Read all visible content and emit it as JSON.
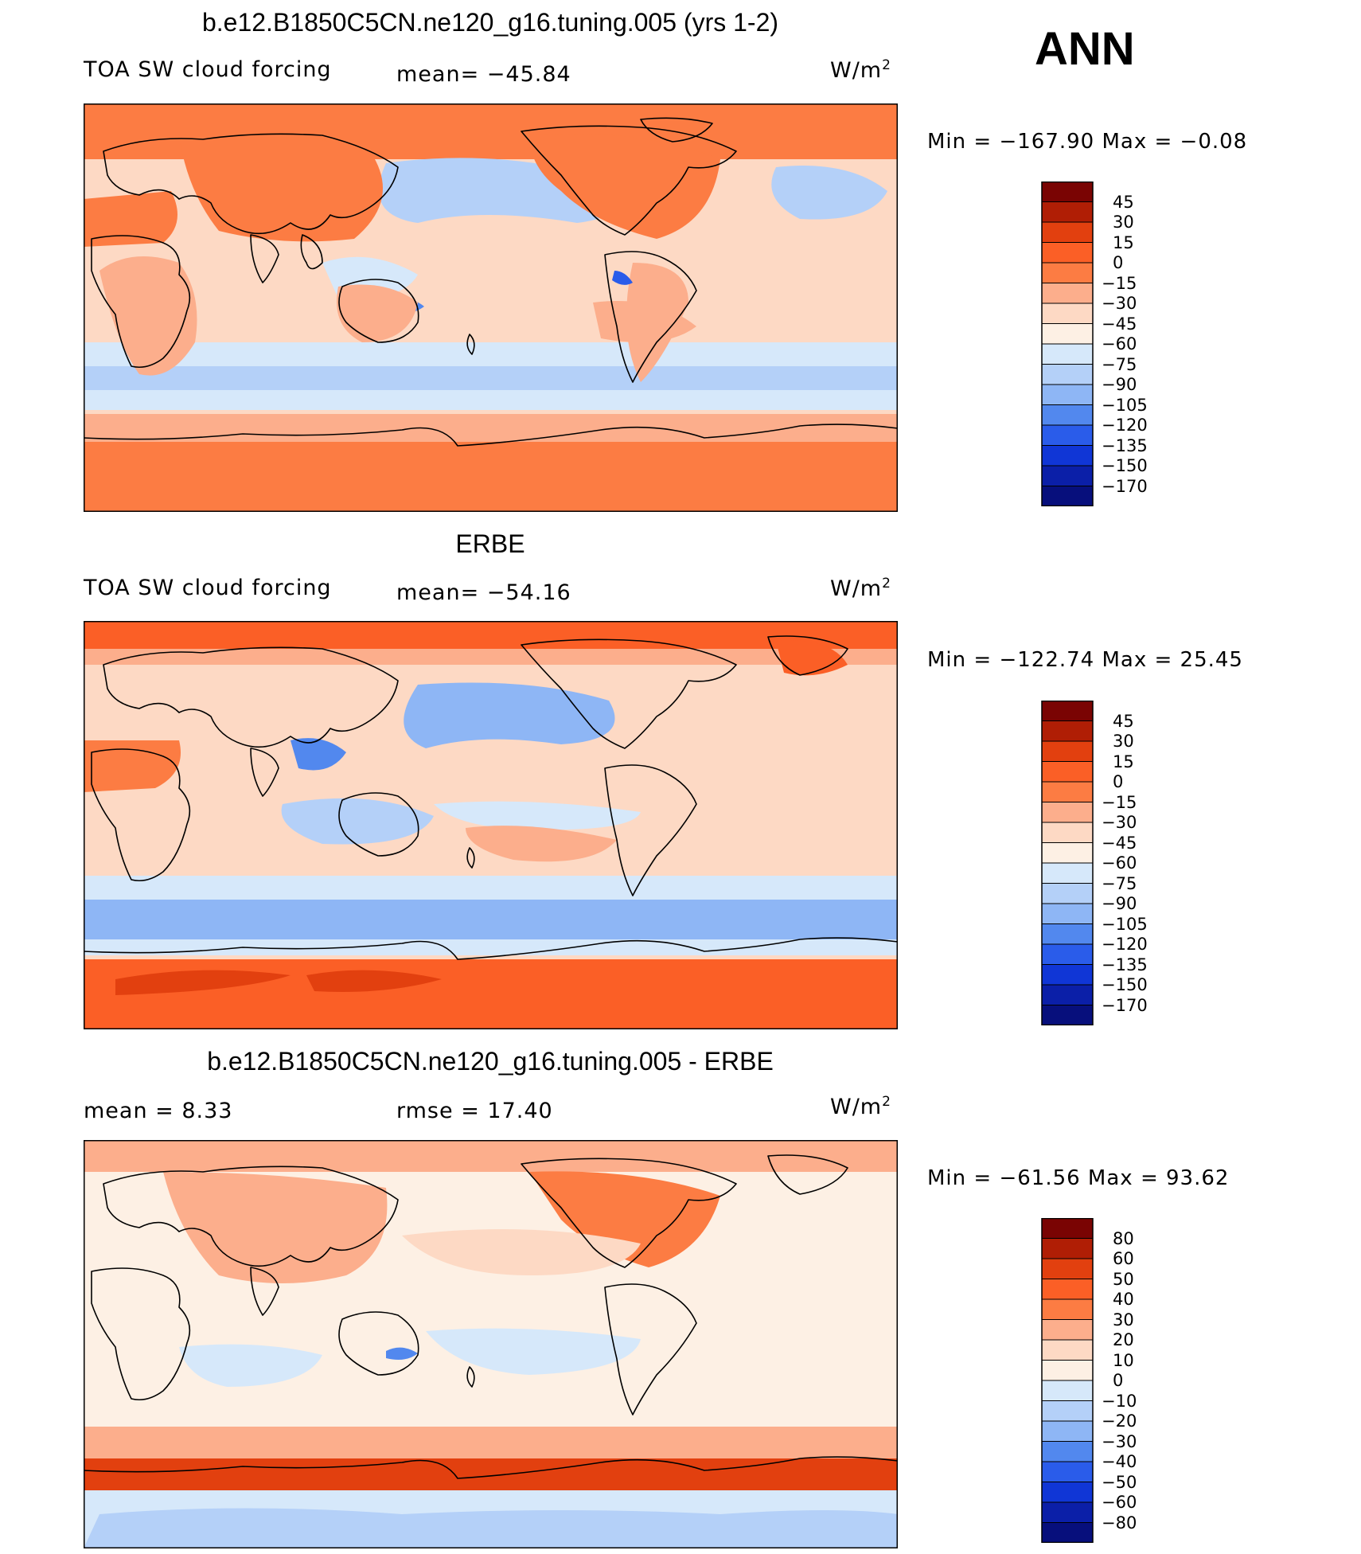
{
  "season": "ANN",
  "panels": [
    {
      "title": "b.e12.B1850C5CN.ne120_g16.tuning.005 (yrs 1-2)",
      "left_label": "TOA SW cloud forcing",
      "center_label": "mean=  −45.84",
      "units_base": "W/m",
      "units_exp": "2",
      "min_max": "Min  =  −167.90  Max  =   −0.08",
      "field_mean": -45.84,
      "field_min": -167.9,
      "field_max": -0.08,
      "colorbar": {
        "colors": [
          "#7a0403",
          "#b01e05",
          "#e2400f",
          "#fb5f26",
          "#fc7c43",
          "#fcae8c",
          "#fdd9c4",
          "#fdf0e4",
          "#d6e8fa",
          "#b4d0f8",
          "#8eb6f5",
          "#5288ee",
          "#2a5cea",
          "#1036d6",
          "#0b1fa8",
          "#070f7c"
        ],
        "labels": [
          "45",
          "30",
          "15",
          "0",
          "−15",
          "−30",
          "−45",
          "−60",
          "−75",
          "−90",
          "−105",
          "−120",
          "−135",
          "−150",
          "−170"
        ]
      }
    },
    {
      "title": "ERBE",
      "left_label": "TOA SW cloud forcing",
      "center_label": "mean=  −54.16",
      "units_base": "W/m",
      "units_exp": "2",
      "min_max": "Min  =  −122.74  Max  =   25.45",
      "field_mean": -54.16,
      "field_min": -122.74,
      "field_max": 25.45,
      "colorbar": {
        "colors": [
          "#7a0403",
          "#b01e05",
          "#e2400f",
          "#fb5f26",
          "#fc7c43",
          "#fcae8c",
          "#fdd9c4",
          "#fdf0e4",
          "#d6e8fa",
          "#b4d0f8",
          "#8eb6f5",
          "#5288ee",
          "#2a5cea",
          "#1036d6",
          "#0b1fa8",
          "#070f7c"
        ],
        "labels": [
          "45",
          "30",
          "15",
          "0",
          "−15",
          "−30",
          "−45",
          "−60",
          "−75",
          "−90",
          "−105",
          "−120",
          "−135",
          "−150",
          "−170"
        ]
      }
    },
    {
      "title": "b.e12.B1850C5CN.ne120_g16.tuning.005 - ERBE",
      "left_label": "mean  =     8.33",
      "center_label": "rmse  =    17.40",
      "units_base": "W/m",
      "units_exp": "2",
      "min_max": "Min  =  −61.56  Max  =   93.62",
      "field_mean": 8.33,
      "field_rmse": 17.4,
      "field_min": -61.56,
      "field_max": 93.62,
      "colorbar": {
        "colors": [
          "#7a0403",
          "#b01e05",
          "#e2400f",
          "#fb5f26",
          "#fc7c43",
          "#fcae8c",
          "#fdd9c4",
          "#fdf0e4",
          "#d6e8fa",
          "#b4d0f8",
          "#8eb6f5",
          "#5288ee",
          "#2a5cea",
          "#1036d6",
          "#0b1fa8",
          "#070f7c"
        ],
        "labels": [
          "80",
          "60",
          "50",
          "40",
          "30",
          "20",
          "10",
          "0",
          "−10",
          "−20",
          "−30",
          "−40",
          "−50",
          "−60",
          "−80"
        ]
      }
    }
  ]
}
